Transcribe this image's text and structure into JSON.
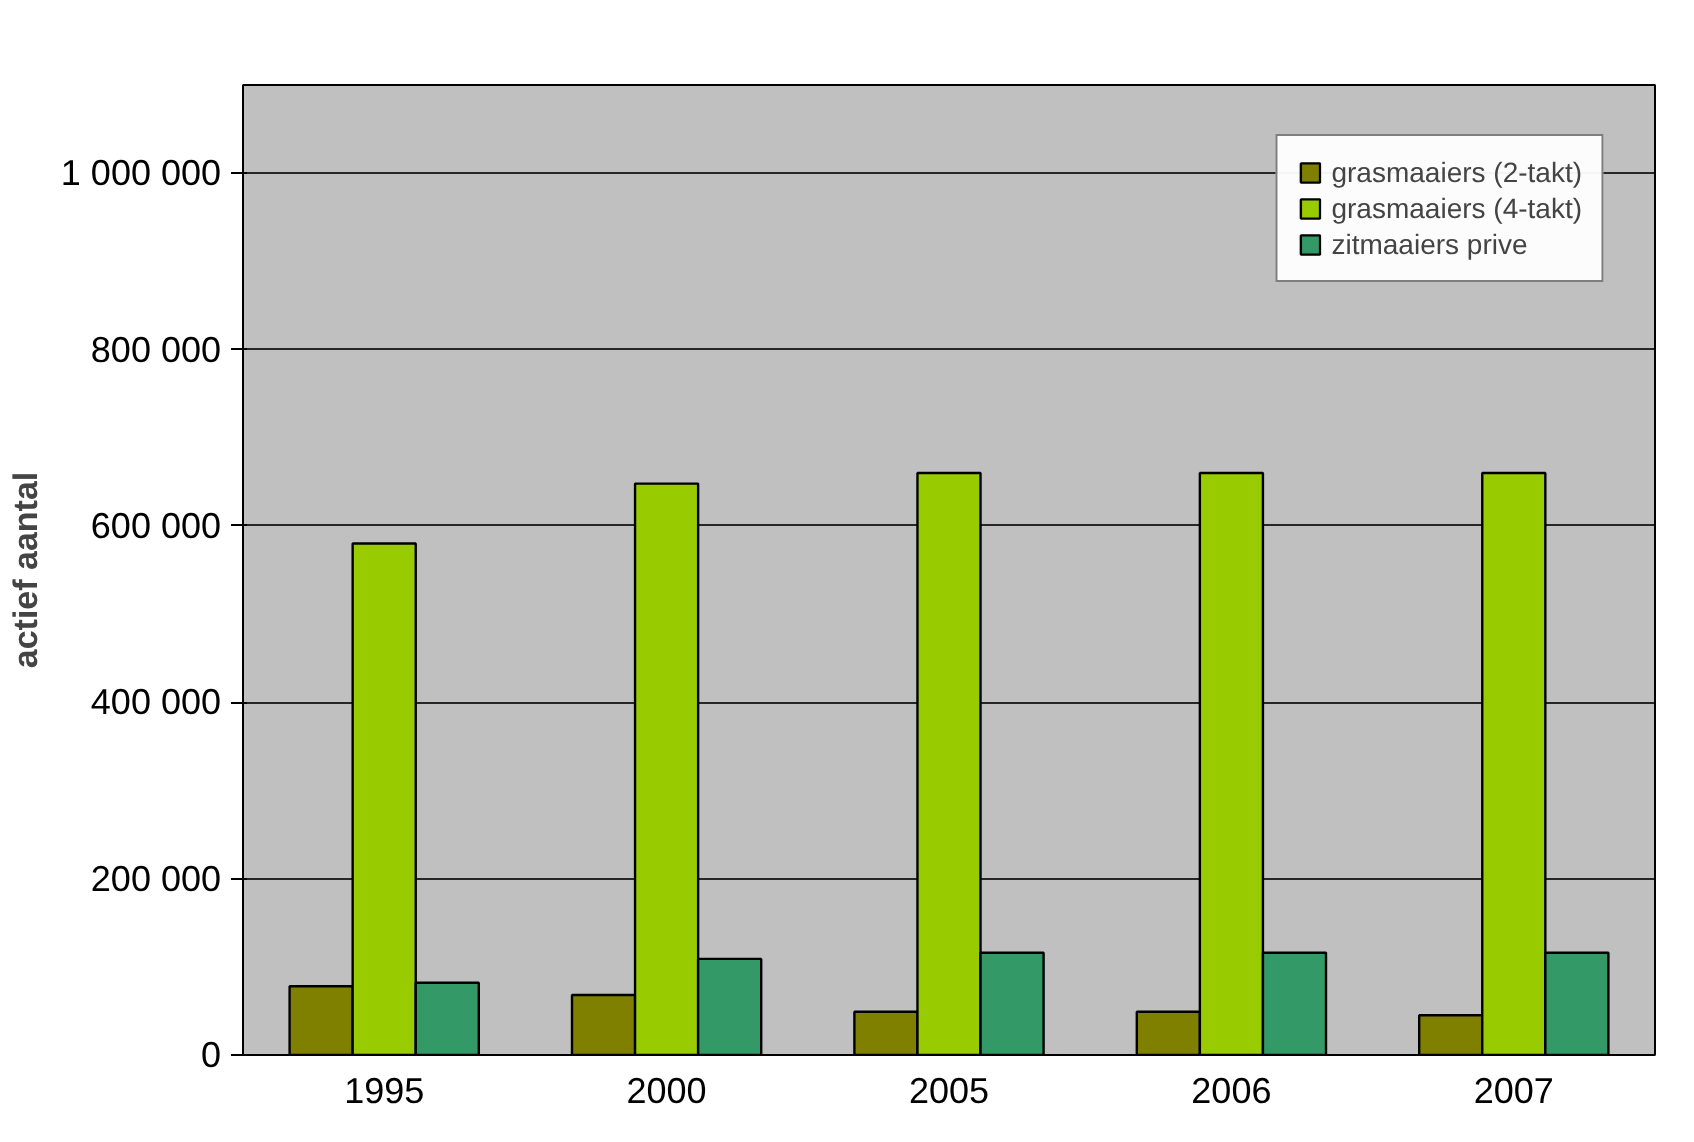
{
  "chart_data": {
    "type": "bar",
    "ylabel": "actief aantal",
    "categories": [
      "1995",
      "2000",
      "2005",
      "2006",
      "2007"
    ],
    "series": [
      {
        "name": "grasmaaiers (2-takt)",
        "color": "#808000",
        "values": [
          78000,
          68000,
          49000,
          49000,
          45000
        ]
      },
      {
        "name": "grasmaaiers (4-takt)",
        "color": "#99cc00",
        "values": [
          580000,
          648000,
          660000,
          660000,
          660000
        ]
      },
      {
        "name": "zitmaaiers prive",
        "color": "#339966",
        "values": [
          82000,
          109000,
          116000,
          116000,
          116000
        ]
      }
    ],
    "ylim": [
      0,
      1100000
    ],
    "yticks": [
      {
        "value": 0,
        "label": "0"
      },
      {
        "value": 200000,
        "label": "200 000"
      },
      {
        "value": 400000,
        "label": "400 000"
      },
      {
        "value": 600000,
        "label": "600 000"
      },
      {
        "value": 800000,
        "label": "800 000"
      },
      {
        "value": 1000000,
        "label": "1 000 000"
      }
    ],
    "grid": "y",
    "legend": "top right"
  }
}
